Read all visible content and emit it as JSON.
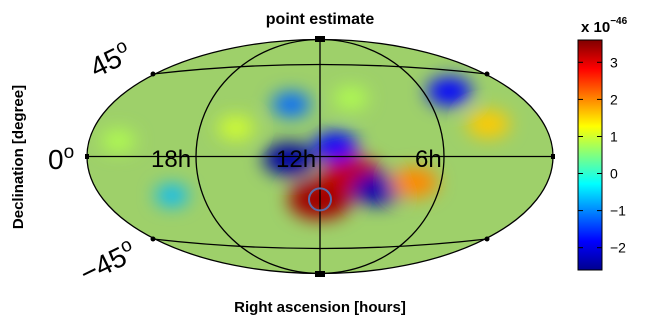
{
  "chart_data": {
    "type": "heatmap",
    "title": "point estimate",
    "xlabel": "Right ascension [hours]",
    "ylabel": "Declination [degree]",
    "projection": "mollweide-style all-sky",
    "grid": "on",
    "ra_tick_labels": [
      "18h",
      "12h",
      "6h"
    ],
    "dec_tick_labels": [
      {
        "base": "45",
        "sup": "o"
      },
      {
        "base": "0",
        "sup": "o"
      },
      {
        "base": "−45",
        "sup": "o"
      }
    ],
    "colorbar": {
      "min": -2.6,
      "max": 3.6,
      "ticks": [
        3,
        2,
        1,
        0,
        -1,
        -2
      ],
      "tick_labels": [
        "3",
        "2",
        "1",
        "0",
        "−1",
        "−2"
      ],
      "scale_prefix": "x 10",
      "scale_exponent": "−46",
      "colormap": "jet"
    },
    "features": [
      {
        "ra_h": 12.0,
        "dec_deg": -33,
        "value": 3.4
      },
      {
        "ra_h": 10.3,
        "dec_deg": -15,
        "value": 3.2
      },
      {
        "ra_h": 13.6,
        "dec_deg": -2,
        "value": -2.4
      },
      {
        "ra_h": 11.2,
        "dec_deg": 8,
        "value": -1.8
      },
      {
        "ra_h": 8.9,
        "dec_deg": -25,
        "value": -2.3
      },
      {
        "ra_h": 7.0,
        "dec_deg": -20,
        "value": 2.0
      },
      {
        "ra_h": 13.7,
        "dec_deg": 40,
        "value": -1.2
      },
      {
        "ra_h": 2.9,
        "dec_deg": 25,
        "value": 1.6
      },
      {
        "ra_h": 3.7,
        "dec_deg": 50,
        "value": -1.8
      },
      {
        "ra_h": 16.5,
        "dec_deg": 22,
        "value": 1.0
      },
      {
        "ra_h": 22.5,
        "dec_deg": 12,
        "value": 0.8
      },
      {
        "ra_h": 10.1,
        "dec_deg": 45,
        "value": 0.8
      },
      {
        "ra_h": 20.2,
        "dec_deg": -30,
        "value": -0.7
      }
    ],
    "marker": {
      "type": "circle",
      "ra_h": 12.0,
      "dec_deg": -33
    }
  }
}
